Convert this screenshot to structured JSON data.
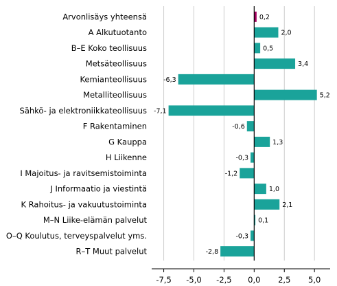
{
  "chart_data": {
    "type": "bar",
    "orientation": "horizontal",
    "categories": [
      "Arvonlisäys yhteensä",
      "A Alkutuotanto",
      "B–E Koko teollisuus",
      "Metsäteollisuus",
      "Kemianteollisuus",
      "Metalliteollisuus",
      "Sähkö- ja elektroniikkateollisuus",
      "F Rakentaminen",
      "G Kauppa",
      "H Liikenne",
      "I Majoitus- ja ravitsemistoiminta",
      "J Informaatio ja viestintä",
      "K Rahoitus- ja vakuutustoiminta",
      "M–N Liike-elämän palvelut",
      "O–Q Koulutus, terveyspalvelut yms.",
      "R–T Muut palvelut"
    ],
    "values": [
      0.2,
      2.0,
      0.5,
      3.4,
      -6.3,
      5.2,
      -7.1,
      -0.6,
      1.3,
      -0.3,
      -1.2,
      1.0,
      2.1,
      0.1,
      -0.3,
      -2.8
    ],
    "value_labels": [
      "0,2",
      "2,0",
      "0,5",
      "3,4",
      "-6,3",
      "5,2",
      "-7,1",
      "-0,6",
      "1,3",
      "-0,3",
      "-1,2",
      "1,0",
      "2,1",
      "0,1",
      "-0,3",
      "-2,8"
    ],
    "xlim": [
      -8.5,
      6.3
    ],
    "xticks": [
      -7.5,
      -5.0,
      -2.5,
      0.0,
      2.5,
      5.0
    ],
    "xtick_labels": [
      "-7,5",
      "-5,0",
      "-2,5",
      "0,0",
      "2,5",
      "5,0"
    ],
    "grid": "vertical",
    "legend": "none",
    "colors": {
      "highlight": "#a4005e",
      "bar": "#1aa39a",
      "grid": "#cccccc",
      "axis": "#000000"
    }
  }
}
